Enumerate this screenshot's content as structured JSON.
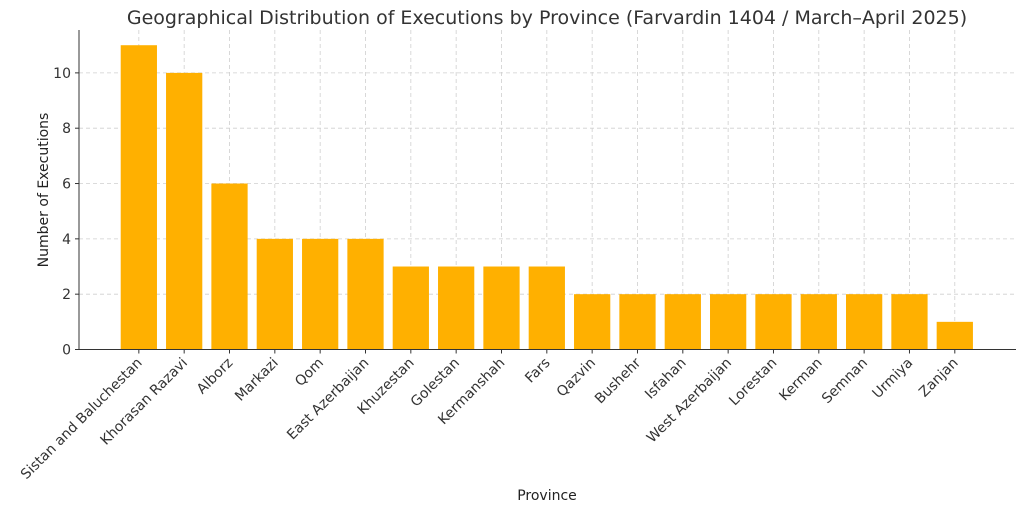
{
  "chart_data": {
    "type": "bar",
    "title": "Geographical Distribution of Executions by Province (Farvardin 1404 / March–April 2025)",
    "xlabel": "Province",
    "ylabel": "Number of Executions",
    "categories": [
      "Sistan and Baluchestan",
      "Khorasan Razavi",
      "Alborz",
      "Markazi",
      "Qom",
      "East Azerbaijan",
      "Khuzestan",
      "Golestan",
      "Kermanshah",
      "Fars",
      "Qazvin",
      "Bushehr",
      "Isfahan",
      "West Azerbaijan",
      "Lorestan",
      "Kerman",
      "Semnan",
      "Urmiya",
      "Zanjan"
    ],
    "values": [
      11,
      10,
      6,
      4,
      4,
      4,
      3,
      3,
      3,
      3,
      2,
      2,
      2,
      2,
      2,
      2,
      2,
      2,
      1
    ],
    "ylim": [
      0,
      11.55
    ],
    "yticks": [
      0,
      2,
      4,
      6,
      8,
      10
    ],
    "grid": true,
    "bar_color": "#FFB000"
  }
}
